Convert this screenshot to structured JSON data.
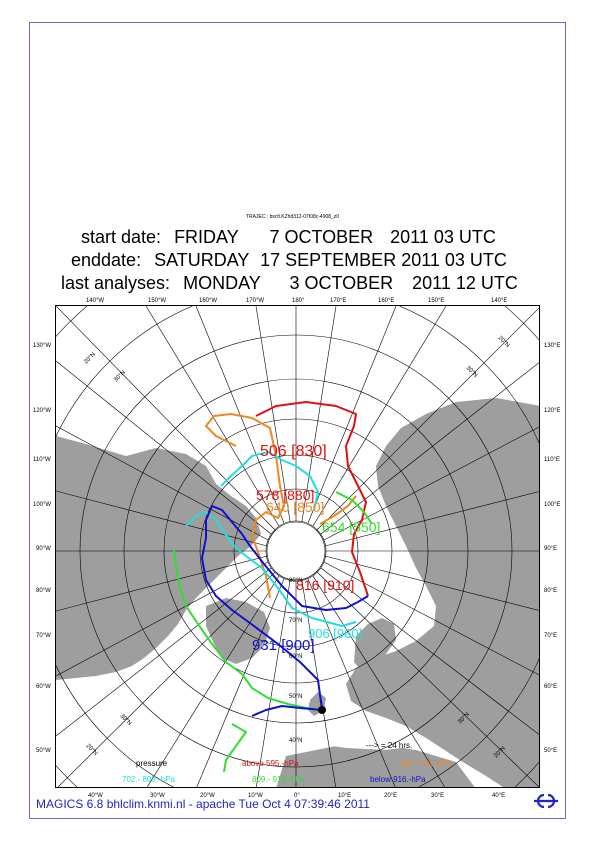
{
  "file_tag": "TRAJEC : bsclt.KZhd312-07t08c-4908_z0",
  "header": {
    "start_label": "start date:",
    "start_day": "FRIDAY",
    "start_date": "7 OCTOBER",
    "start_time": "2011 03 UTC",
    "end_label": "enddate:",
    "end_day": "SATURDAY",
    "end_date": "17 SEPTEMBER 2011 03 UTC",
    "analysis_label": "last analyses:",
    "analysis_day": "MONDAY",
    "analysis_date": "3 OCTOBER",
    "analysis_time": "2011 12 UTC"
  },
  "top_longitudes": [
    "140°W",
    "150°W",
    "160°W",
    "170°W",
    "180°",
    "170°E",
    "160°E",
    "150°E",
    "140°E"
  ],
  "bottom_longitudes": [
    "40°W",
    "30°W",
    "20°W",
    "10°W",
    "0°",
    "10°E",
    "20°E",
    "30°E",
    "40°E"
  ],
  "left_longitudes": [
    "130°W",
    "120°W",
    "110°W",
    "100°W",
    "90°W",
    "80°W",
    "70°W",
    "60°W",
    "50°W"
  ],
  "right_longitudes": [
    "130°E",
    "120°E",
    "110°E",
    "100°E",
    "90°E",
    "80°E",
    "70°E",
    "60°E",
    "50°E"
  ],
  "lat_labels": {
    "n20_tl": "20°N",
    "n30_tl": "30°N",
    "n20_tr": "20°N",
    "n30_tr": "30°N",
    "n20_bl": "20°N",
    "n30_bl": "30°N",
    "n20_br": "20°N",
    "n30_br": "30°N",
    "n40": "40°N",
    "n50": "50°N",
    "n60": "60°N",
    "n70": "70°N",
    "n80": "80°N"
  },
  "trajectory_labels": {
    "a": "506 [830]",
    "b": "578 [880]",
    "c": "640 [850]",
    "d": "654 [550]",
    "e": "816 [910]",
    "f": "931 [900]",
    "g": "906 [960]"
  },
  "legend": {
    "time_step": "---> = 24 hrs.",
    "pressure_label": "pressure",
    "above": "above  595.-hPa",
    "range_orange": "595.-  702.-hPa",
    "range_cyan": "702.-  809.-hPa",
    "range_green": "809.-  916.-hPa",
    "below": "below  916.-hPa"
  },
  "colors": {
    "red": "#dd1111",
    "orange": "#ee8822",
    "cyan": "#22dddd",
    "green": "#33dd33",
    "blue": "#1111cc",
    "land": "#9e9e9e",
    "frame": "#6b6bd0",
    "footer": "#2323c8"
  },
  "footer": "MAGICS 6.8 bhlclim.knmi.nl - apache Tue Oct  4 07:39:46 2011",
  "logo_icon": "ecmwf-logo-icon"
}
